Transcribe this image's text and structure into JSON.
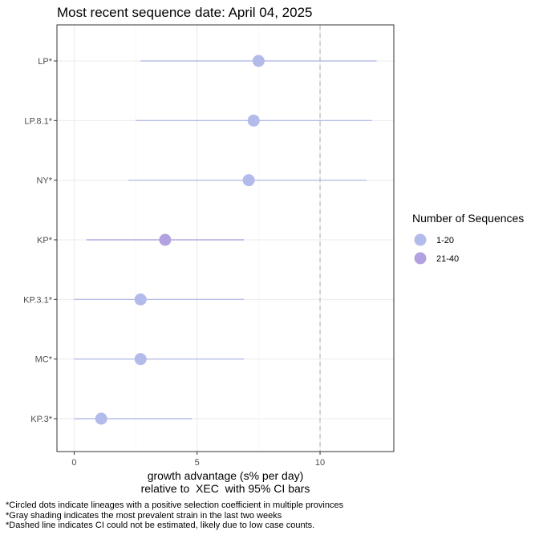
{
  "chart_data": {
    "type": "scatter",
    "title": "Most recent sequence date: April 04, 2025",
    "xlabel_line1": "growth advantage (s% per day)",
    "xlabel_line2": "relative to  XEC  with 95% CI bars",
    "ylabel": "",
    "xlim": [
      -0.7,
      13.0
    ],
    "x_ticks": [
      0,
      5,
      10
    ],
    "x_tick_labels": [
      "0",
      "5",
      "10"
    ],
    "grid": true,
    "reference_line": {
      "x": 10,
      "style": "dashed"
    },
    "legend": {
      "title": "Number of Sequences",
      "placement": "right",
      "entries": [
        {
          "label": "1-20",
          "color": "#b3bbea"
        },
        {
          "label": "21-40",
          "color": "#b3a2e0"
        }
      ]
    },
    "points": [
      {
        "label": "LP*",
        "value": 7.5,
        "ci_low": 2.7,
        "ci_high": 12.3,
        "group": "1-20"
      },
      {
        "label": "LP.8.1*",
        "value": 7.3,
        "ci_low": 2.5,
        "ci_high": 12.1,
        "group": "1-20"
      },
      {
        "label": "NY*",
        "value": 7.1,
        "ci_low": 2.2,
        "ci_high": 11.9,
        "group": "1-20"
      },
      {
        "label": "KP*",
        "value": 3.7,
        "ci_low": 0.5,
        "ci_high": 6.9,
        "group": "21-40"
      },
      {
        "label": "KP.3.1*",
        "value": 2.7,
        "ci_low": 0.0,
        "ci_high": 6.9,
        "group": "1-20"
      },
      {
        "label": "MC*",
        "value": 2.7,
        "ci_low": 0.0,
        "ci_high": 6.9,
        "group": "1-20"
      },
      {
        "label": "KP.3*",
        "value": 1.1,
        "ci_low": 0.0,
        "ci_high": 4.8,
        "group": "1-20"
      }
    ]
  },
  "footnotes": [
    "*Circled dots indicate lineages with a positive selection coefficient in multiple provinces",
    "*Gray shading indicates the most prevalent strain in the last two weeks",
    "*Dashed line indicates CI could not be estimated, likely due to low case counts."
  ],
  "colors": {
    "ci_line_1_20": "#a9b2e6",
    "ci_line_21_40": "#a898dc",
    "grid": "#ebebeb",
    "panel_border": "#333333",
    "ref_line": "#bdbdbd"
  }
}
